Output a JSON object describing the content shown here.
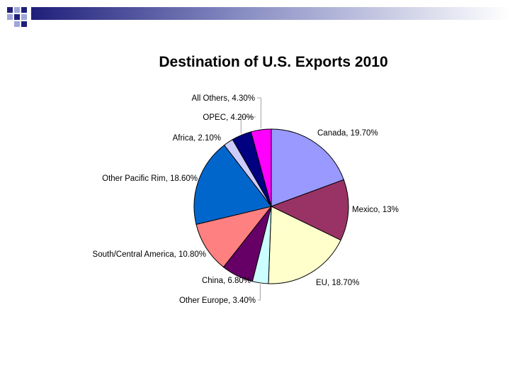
{
  "chart_data": {
    "type": "pie",
    "title": "Destination of U.S. Exports 2010",
    "slices": [
      {
        "name": "Canada",
        "value": 19.7,
        "label": "Canada, 19.70%",
        "color": "#9999FF"
      },
      {
        "name": "Mexico",
        "value": 13.0,
        "label": "Mexico, 13%",
        "color": "#993366"
      },
      {
        "name": "EU",
        "value": 18.7,
        "label": "EU, 18.70%",
        "color": "#FFFFCC"
      },
      {
        "name": "Other Europe",
        "value": 3.4,
        "label": "Other Europe, 3.40%",
        "color": "#CCFFFF"
      },
      {
        "name": "China",
        "value": 6.8,
        "label": "China, 6.80%",
        "color": "#660066"
      },
      {
        "name": "South/Central America",
        "value": 10.8,
        "label": "South/Central America, 10.80%",
        "color": "#FF8080"
      },
      {
        "name": "Other Pacific Rim",
        "value": 18.6,
        "label": "Other Pacific Rim, 18.60%",
        "color": "#0066CC"
      },
      {
        "name": "Africa",
        "value": 2.1,
        "label": "Africa, 2.10%",
        "color": "#CCCCFF"
      },
      {
        "name": "OPEC",
        "value": 4.2,
        "label": "OPEC, 4.20%",
        "color": "#000080"
      },
      {
        "name": "All Others",
        "value": 4.3,
        "label": "All Others, 4.30%",
        "color": "#FF00FF"
      }
    ]
  },
  "theme": {
    "accent": "#1f1f7a",
    "accent_light": "#9fa6d9"
  }
}
